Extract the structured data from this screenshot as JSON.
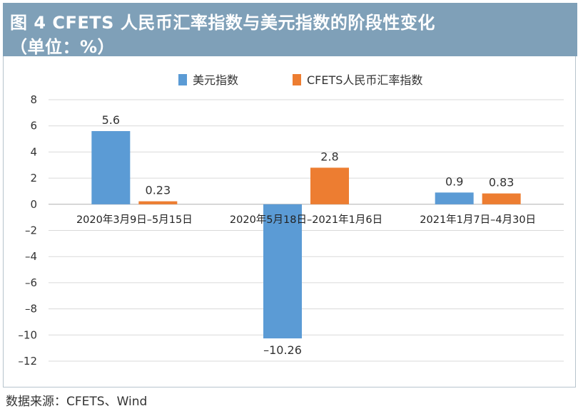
{
  "header": {
    "title_line1": "图 4    CFETS 人民币汇率指数与美元指数的阶段性变化",
    "title_line2": "（单位：%）"
  },
  "source": "数据来源：CFETS、Wind",
  "colors": {
    "blue": "#5b9bd5",
    "orange": "#ed7d31",
    "header": "#7fa0b8"
  },
  "chart_data": {
    "type": "bar",
    "title": "CFETS 人民币汇率指数与美元指数的阶段性变化",
    "unit": "（单位：%）",
    "categories": [
      "2020年3月9日–5月15日",
      "2020年5月18日–2021年1月6日",
      "2021年1月7日–4月30日"
    ],
    "series": [
      {
        "name": "美元指数",
        "values": [
          5.6,
          -10.26,
          0.9
        ],
        "labels": [
          "5.6",
          "–10.26",
          "0.9"
        ],
        "color": "#5b9bd5"
      },
      {
        "name": "CFETS人民币汇率指数",
        "values": [
          0.23,
          2.8,
          0.83
        ],
        "labels": [
          "0.23",
          "2.8",
          "0.83"
        ],
        "color": "#ed7d31"
      }
    ],
    "ylim": [
      -12,
      8
    ],
    "yticks": [
      8,
      6,
      4,
      2,
      0,
      -2,
      -4,
      -6,
      -8,
      -10,
      -12
    ],
    "ytick_labels": [
      "8",
      "6",
      "4",
      "2",
      "0",
      "–2",
      "–4",
      "–6",
      "–8",
      "–10",
      "–12"
    ],
    "grid": true,
    "legend": "top-center",
    "xlabel": "",
    "ylabel": ""
  }
}
